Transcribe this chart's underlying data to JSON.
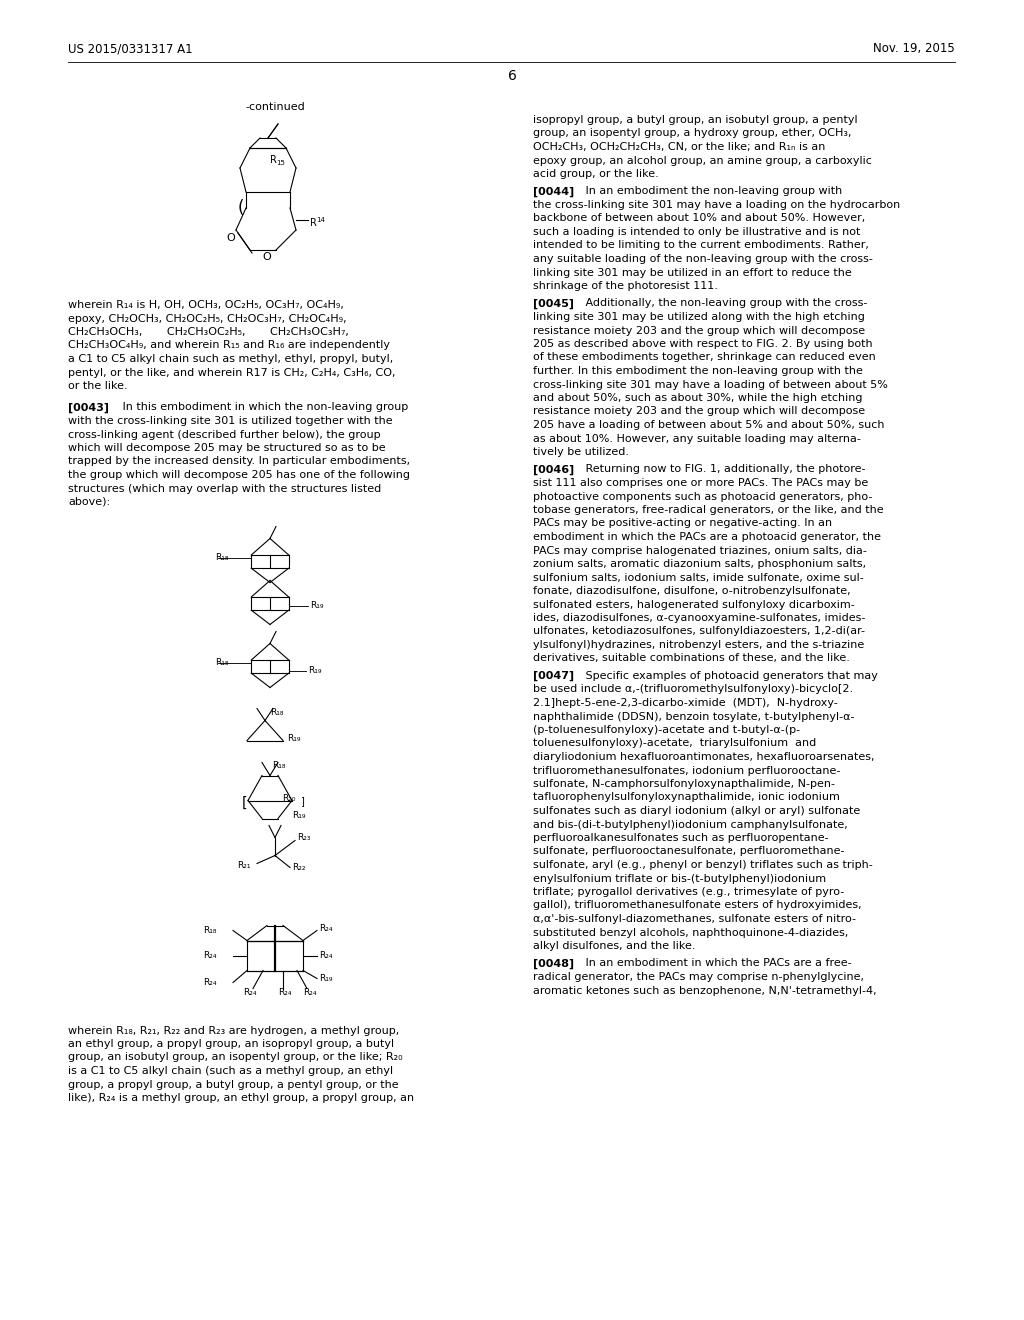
{
  "page_number": "6",
  "patent_number": "US 2015/0331317 A1",
  "patent_date": "Nov. 19, 2015",
  "bg": "#ffffff",
  "tc": "#000000"
}
